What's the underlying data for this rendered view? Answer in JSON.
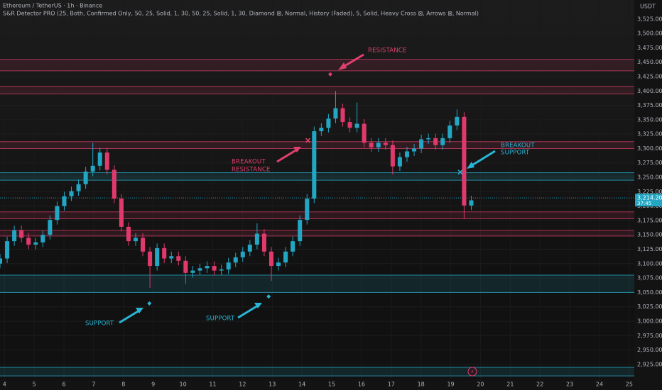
{
  "chart_data": {
    "type": "candlestick",
    "title": "Ethereum / TetherUS · 1h · Binance",
    "subtitle": "S&R Detector PRO (25, Both, Confirmed Only, 50, 25, Solid, 1, 30, 50, 25, Solid, 1, 30, Diamond ⊠, Normal, History (Faded), 5, Solid, Heavy Cross ⊠, Arrows ⊠, Normal)",
    "currency": "USDT",
    "up_color": "#22a6c3",
    "down_color": "#e03a6d",
    "grid": true,
    "xlim": [
      3.85,
      25.17
    ],
    "ylim": [
      2899,
      3558
    ],
    "xticks": [
      4,
      5,
      6,
      7,
      8,
      9,
      10,
      11,
      12,
      13,
      14,
      15,
      16,
      17,
      18,
      19,
      20,
      21,
      22,
      23,
      24,
      25
    ],
    "yticks": [
      {
        "value": 2925,
        "label": "2,925.00"
      },
      {
        "value": 2950,
        "label": "2,950.00"
      },
      {
        "value": 2975,
        "label": "2,975.00"
      },
      {
        "value": 3000,
        "label": "3,000.00"
      },
      {
        "value": 3025,
        "label": "3,025.00"
      },
      {
        "value": 3050,
        "label": "3,050.00"
      },
      {
        "value": 3075,
        "label": "3,075.00"
      },
      {
        "value": 3100,
        "label": "3,100.00"
      },
      {
        "value": 3125,
        "label": "3,125.00"
      },
      {
        "value": 3150,
        "label": "3,150.00"
      },
      {
        "value": 3175,
        "label": "3,175.00"
      },
      {
        "value": 3200,
        "label": "3,200.00"
      },
      {
        "value": 3225,
        "label": "3,225.00"
      },
      {
        "value": 3250,
        "label": "3,250.00"
      },
      {
        "value": 3275,
        "label": "3,275.00"
      },
      {
        "value": 3300,
        "label": "3,300.00"
      },
      {
        "value": 3325,
        "label": "3,325.00"
      },
      {
        "value": 3350,
        "label": "3,350.00"
      },
      {
        "value": 3375,
        "label": "3,375.00"
      },
      {
        "value": 3400,
        "label": "3,400.00"
      },
      {
        "value": 3425,
        "label": "3,425.00"
      },
      {
        "value": 3450,
        "label": "3,450.00"
      },
      {
        "value": 3475,
        "label": "3,475.00"
      },
      {
        "value": 3500,
        "label": "3,500.00"
      },
      {
        "value": 3525,
        "label": "3,525.00"
      }
    ],
    "x": [
      3.85,
      4.09,
      4.33,
      4.57,
      4.81,
      5.05,
      5.29,
      5.53,
      5.77,
      6.01,
      6.25,
      6.49,
      6.73,
      6.97,
      7.21,
      7.45,
      7.69,
      7.93,
      8.17,
      8.41,
      8.65,
      8.89,
      9.13,
      9.37,
      9.61,
      9.85,
      10.09,
      10.33,
      10.57,
      10.81,
      11.05,
      11.29,
      11.53,
      11.77,
      12.01,
      12.25,
      12.49,
      12.73,
      12.97,
      13.21,
      13.45,
      13.69,
      13.93,
      14.17,
      14.41,
      14.65,
      14.89,
      15.13,
      15.37,
      15.61,
      15.85,
      16.09,
      16.33,
      16.57,
      16.81,
      17.05,
      17.29,
      17.53,
      17.77,
      18.01,
      18.25,
      18.49,
      18.73,
      18.97,
      19.21,
      19.45,
      19.69
    ],
    "open": [
      3100,
      3109,
      3139,
      3158,
      3145,
      3133,
      3137,
      3150,
      3176,
      3200,
      3217,
      3226,
      3238,
      3260,
      3270,
      3293,
      3263,
      3213,
      3164,
      3139,
      3145,
      3121,
      3096,
      3127,
      3109,
      3113,
      3105,
      3084,
      3088,
      3092,
      3096,
      3088,
      3090,
      3102,
      3111,
      3121,
      3133,
      3152,
      3121,
      3096,
      3102,
      3121,
      3139,
      3176,
      3213,
      3330,
      3336,
      3352,
      3370,
      3346,
      3336,
      3343,
      3310,
      3302,
      3310,
      3306,
      3269,
      3285,
      3295,
      3300,
      3316,
      3318,
      3306,
      3318,
      3340,
      3355,
      3201
    ],
    "high": [
      3117,
      3147,
      3166,
      3166,
      3153,
      3145,
      3158,
      3184,
      3208,
      3225,
      3234,
      3246,
      3268,
      3310,
      3301,
      3301,
      3271,
      3221,
      3172,
      3153,
      3153,
      3129,
      3135,
      3135,
      3121,
      3121,
      3113,
      3096,
      3100,
      3104,
      3104,
      3098,
      3110,
      3119,
      3129,
      3141,
      3170,
      3160,
      3129,
      3110,
      3129,
      3147,
      3184,
      3221,
      3338,
      3344,
      3360,
      3400,
      3378,
      3354,
      3380,
      3351,
      3318,
      3318,
      3318,
      3314,
      3293,
      3303,
      3308,
      3324,
      3326,
      3326,
      3326,
      3348,
      3368,
      3363,
      3218
    ],
    "low": [
      3092,
      3101,
      3131,
      3137,
      3125,
      3125,
      3129,
      3142,
      3168,
      3192,
      3209,
      3218,
      3230,
      3252,
      3262,
      3255,
      3205,
      3156,
      3131,
      3131,
      3113,
      3058,
      3088,
      3101,
      3101,
      3097,
      3065,
      3076,
      3080,
      3084,
      3080,
      3080,
      3082,
      3094,
      3103,
      3113,
      3125,
      3113,
      3070,
      3088,
      3094,
      3113,
      3131,
      3168,
      3205,
      3322,
      3328,
      3344,
      3338,
      3328,
      3328,
      3302,
      3294,
      3294,
      3298,
      3255,
      3261,
      3277,
      3287,
      3292,
      3308,
      3298,
      3298,
      3310,
      3332,
      3178,
      3193
    ],
    "close": [
      3109,
      3139,
      3158,
      3145,
      3133,
      3137,
      3150,
      3176,
      3200,
      3217,
      3226,
      3238,
      3260,
      3270,
      3293,
      3263,
      3213,
      3164,
      3139,
      3145,
      3121,
      3096,
      3127,
      3109,
      3113,
      3105,
      3084,
      3088,
      3092,
      3096,
      3088,
      3090,
      3102,
      3111,
      3121,
      3133,
      3152,
      3121,
      3096,
      3102,
      3121,
      3139,
      3176,
      3213,
      3330,
      3336,
      3352,
      3370,
      3346,
      3336,
      3343,
      3310,
      3302,
      3310,
      3306,
      3269,
      3285,
      3295,
      3300,
      3316,
      3318,
      3306,
      3318,
      3340,
      3355,
      3201,
      3210
    ],
    "zones": [
      {
        "low": 3435,
        "high": 3455,
        "color": "#e0406e"
      },
      {
        "low": 3395,
        "high": 3408,
        "color": "#e0406e"
      },
      {
        "low": 3300,
        "high": 3312,
        "color": "#e0406e"
      },
      {
        "low": 3245,
        "high": 3258,
        "color": "#29b6d6"
      },
      {
        "low": 3178,
        "high": 3190,
        "color": "#e0406e"
      },
      {
        "low": 3148,
        "high": 3158,
        "color": "#e0406e"
      },
      {
        "low": 3050,
        "high": 3080,
        "color": "#29b6d6"
      },
      {
        "low": 2905,
        "high": 2920,
        "color": "#29b6d6"
      }
    ],
    "markers": [
      {
        "x": 14.2,
        "y": 3314,
        "shape": "cross",
        "color": "#e0406e"
      },
      {
        "x": 19.32,
        "y": 3259,
        "shape": "cross",
        "color": "#29b6d6"
      },
      {
        "x": 14.95,
        "y": 3429,
        "shape": "diamond",
        "color": "#e0406e"
      },
      {
        "x": 8.87,
        "y": 3031,
        "shape": "diamond",
        "color": "#29b6d6"
      },
      {
        "x": 12.88,
        "y": 3043,
        "shape": "diamond",
        "color": "#29b6d6"
      }
    ],
    "annotations": [
      {
        "lines": [
          "RESISTANCE"
        ]
      },
      {
        "lines": [
          "BREAKOUT",
          "RESISTANCE"
        ]
      },
      {
        "lines": [
          "BREAKOUT",
          "SUPPORT"
        ]
      },
      {
        "lines": [
          "SUPPORT"
        ]
      },
      {
        "lines": [
          "SUPPORT"
        ]
      }
    ],
    "last_price": {
      "value": 3214.2,
      "label": "3,214.20"
    },
    "countdown": "37:45"
  }
}
